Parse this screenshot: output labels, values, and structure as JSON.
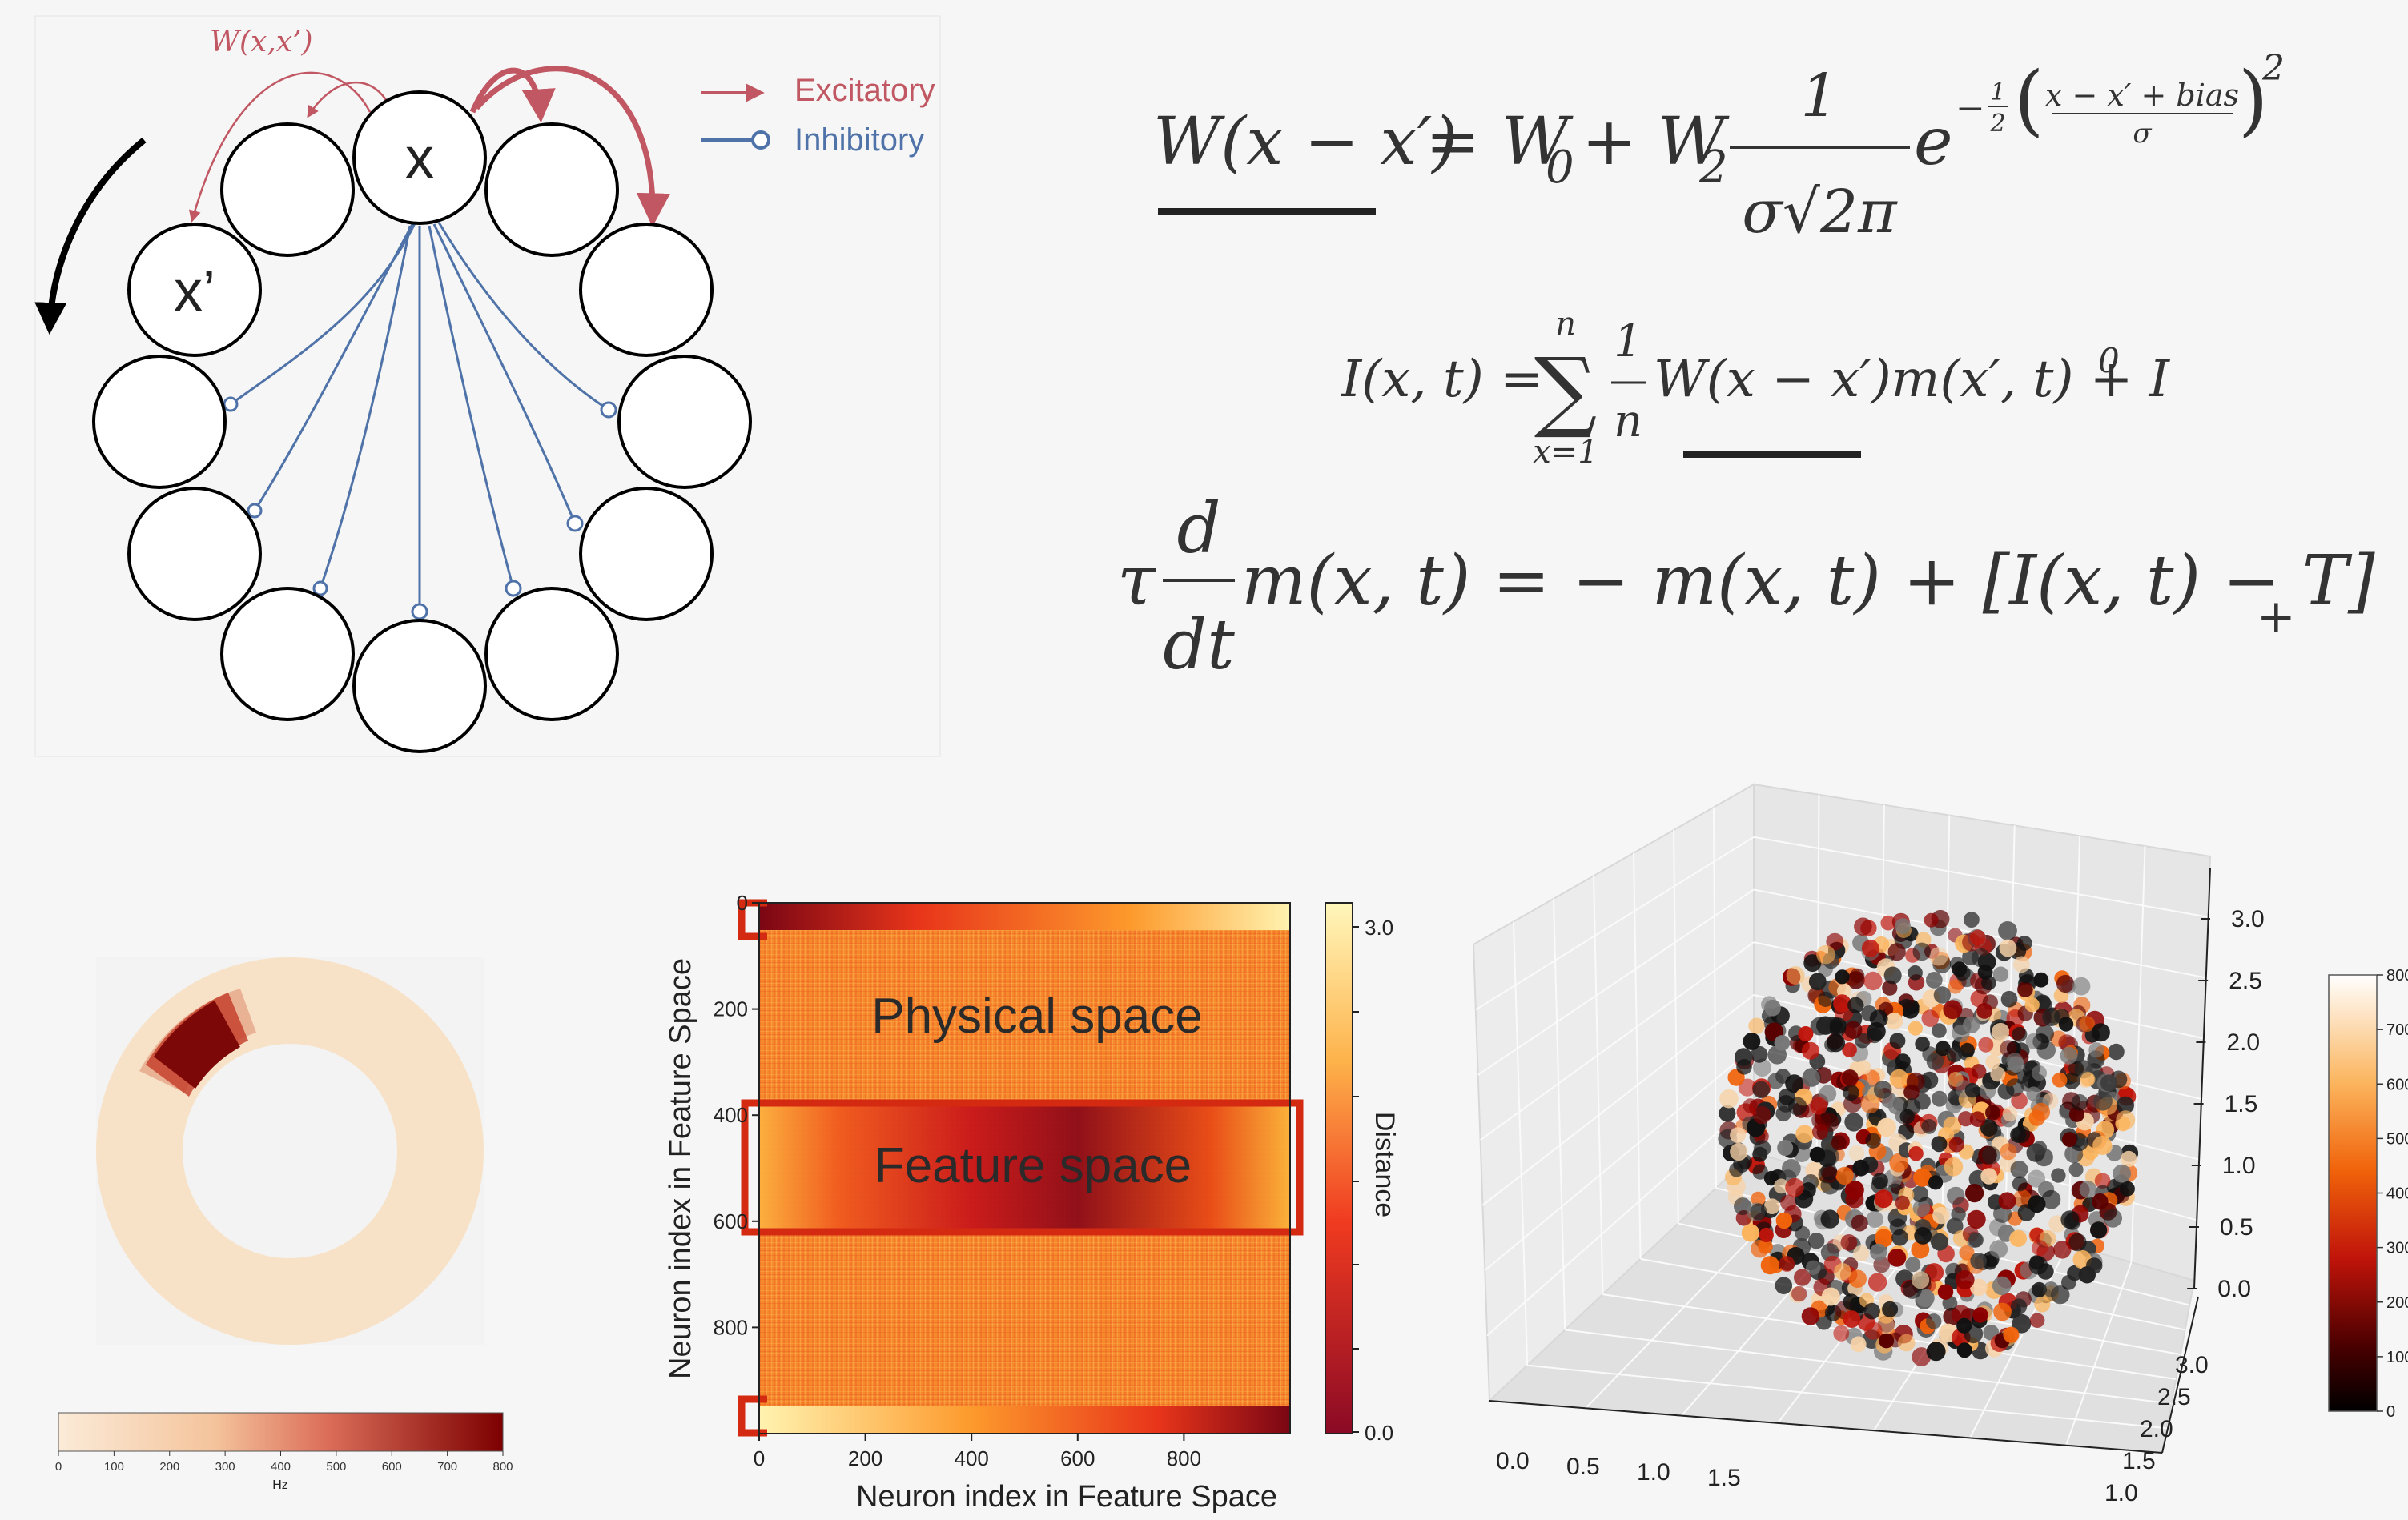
{
  "network": {
    "weight_label": "W(x,x’)",
    "node_x": "x",
    "node_xp": "x’",
    "legend": {
      "excitatory": "Excitatory",
      "inhibitory": "Inhibitory",
      "excitatory_color": "#c05762",
      "inhibitory_color": "#4f73a8"
    }
  },
  "equations": {
    "eq1": {
      "lhs": "W(x − x′)",
      "rhs": "= W",
      "sub0": "0",
      "plus": " + W",
      "sub2": "2",
      "num": "1",
      "den": "σ√2π",
      "e": "e",
      "exp_sign": "−",
      "exp_frac_num": "1",
      "exp_frac_den": "2",
      "exp_num": "x − x′ + bias",
      "exp_den": "σ",
      "exp_pow": "2"
    },
    "eq2": {
      "lhs": "I(x, t) =",
      "sum_top": "n",
      "sum_bot": "x=1",
      "frac_num": "1",
      "frac_den": "n",
      "rhs": "W(x − x′)m(x′, t) + I",
      "sup": "0"
    },
    "eq3": {
      "tau": "τ",
      "num": "d",
      "den": "dt",
      "rhs": "m(x, t) = − m(x, t) + [I(x, t) − T]",
      "sub": "+"
    }
  },
  "ring_colorbar": {
    "ticks": [
      "0",
      "100",
      "200",
      "300",
      "400",
      "500",
      "600",
      "700",
      "800"
    ],
    "unit": "Hz"
  },
  "heatmap": {
    "ylabel": "Neuron index in Feature Space",
    "xlabel": "Neuron index in Feature Space",
    "xticks": [
      "0",
      "200",
      "400",
      "600",
      "800"
    ],
    "yticks": [
      "0",
      "200",
      "400",
      "600",
      "800"
    ],
    "cbar_label": "Distance",
    "cbar_ticks": [
      "3.0",
      "0.0"
    ],
    "region_physical": "Physical space",
    "region_feature": "Feature space",
    "highlight_color": "#d42a12"
  },
  "scatter3d": {
    "z_ticks": [
      "3.0",
      "2.5",
      "2.0",
      "1.5",
      "1.0",
      "0.5",
      "0.0"
    ],
    "x_ticks": [
      "0.0",
      "0.5",
      "1.0",
      "1.5"
    ],
    "y_ticks": [
      "3.0",
      "2.5",
      "2.0",
      "1.5",
      "1.0"
    ],
    "cbar_ticks": [
      "800",
      "700",
      "600",
      "500",
      "400",
      "300",
      "200",
      "100",
      "0"
    ]
  }
}
